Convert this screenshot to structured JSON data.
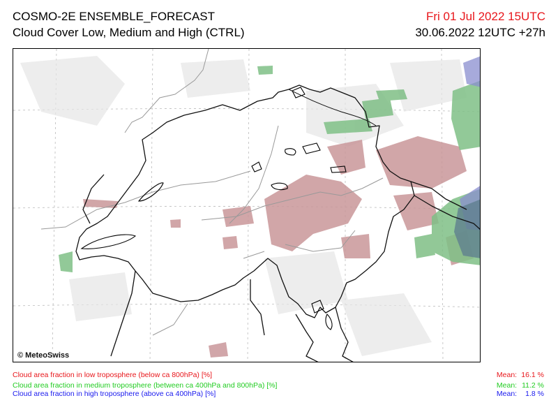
{
  "header": {
    "title": "COSMO-2E ENSEMBLE_FORECAST",
    "subtitle": "Cloud Cover Low, Medium and High (CTRL)",
    "valid_time": "Fri 01 Jul 2022 15UTC",
    "run_info": "30.06.2022 12UTC +27h"
  },
  "map": {
    "copyright": "© MeteoSwiss"
  },
  "legend": {
    "mean_label": "Mean:",
    "items": [
      {
        "label": "Cloud area fraction in low troposphere (below ca 800hPa) [%]",
        "mean": "16.1 %",
        "color": "#e8161b"
      },
      {
        "label": "Cloud area fraction in medium troposphere (between ca 400hPa and 800hPa) [%]",
        "mean": "11.2 %",
        "color": "#22cc22"
      },
      {
        "label": "Cloud area fraction in high troposphere (above ca 400hPa) [%]",
        "mean": "1.8 %",
        "color": "#1a1aee"
      }
    ]
  }
}
